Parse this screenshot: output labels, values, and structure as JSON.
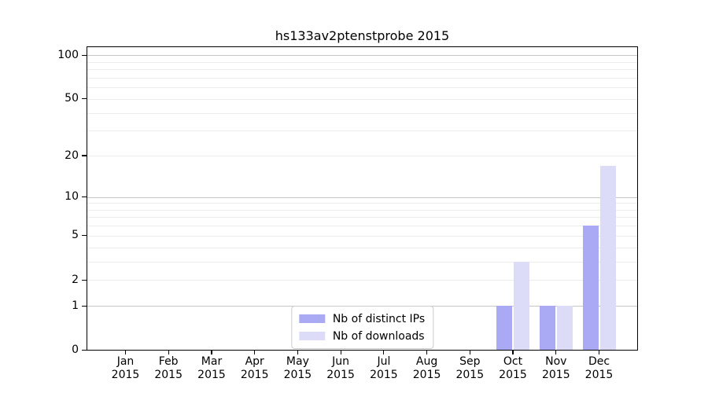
{
  "chart_data": {
    "type": "bar",
    "title": "hs133av2ptenstprobe 2015",
    "categories": [
      "Jan",
      "Feb",
      "Mar",
      "Apr",
      "May",
      "Jun",
      "Jul",
      "Aug",
      "Sep",
      "Oct",
      "Nov",
      "Dec"
    ],
    "year": "2015",
    "series": [
      {
        "name": "Nb of distinct IPs",
        "color": "#aaaaf4",
        "values": [
          0,
          0,
          0,
          0,
          0,
          0,
          0,
          0,
          0,
          1,
          1,
          6
        ]
      },
      {
        "name": "Nb of downloads",
        "color": "#dcdcf9",
        "values": [
          0,
          0,
          0,
          0,
          0,
          0,
          0,
          0,
          0,
          3,
          1,
          17
        ]
      }
    ],
    "xlabel": "",
    "ylabel": "",
    "yscale": "log1p",
    "ylim": [
      0,
      115
    ],
    "ytick_values": [
      0,
      1,
      2,
      5,
      10,
      20,
      50,
      100
    ],
    "ytick_labels": [
      "0",
      "1",
      "2",
      "5",
      "10",
      "20",
      "50",
      "100"
    ],
    "major_gridlines": [
      1,
      10,
      100
    ],
    "minor_gridlines": [
      2,
      3,
      4,
      5,
      6,
      7,
      8,
      9,
      20,
      30,
      40,
      50,
      60,
      70,
      80,
      90
    ],
    "grid": true,
    "legend_position": "lower center",
    "colors": {
      "major_grid": "#c6c6c6",
      "minor_grid": "#ececec",
      "axis": "#000000",
      "background": "#ffffff",
      "text": "#000000"
    }
  }
}
